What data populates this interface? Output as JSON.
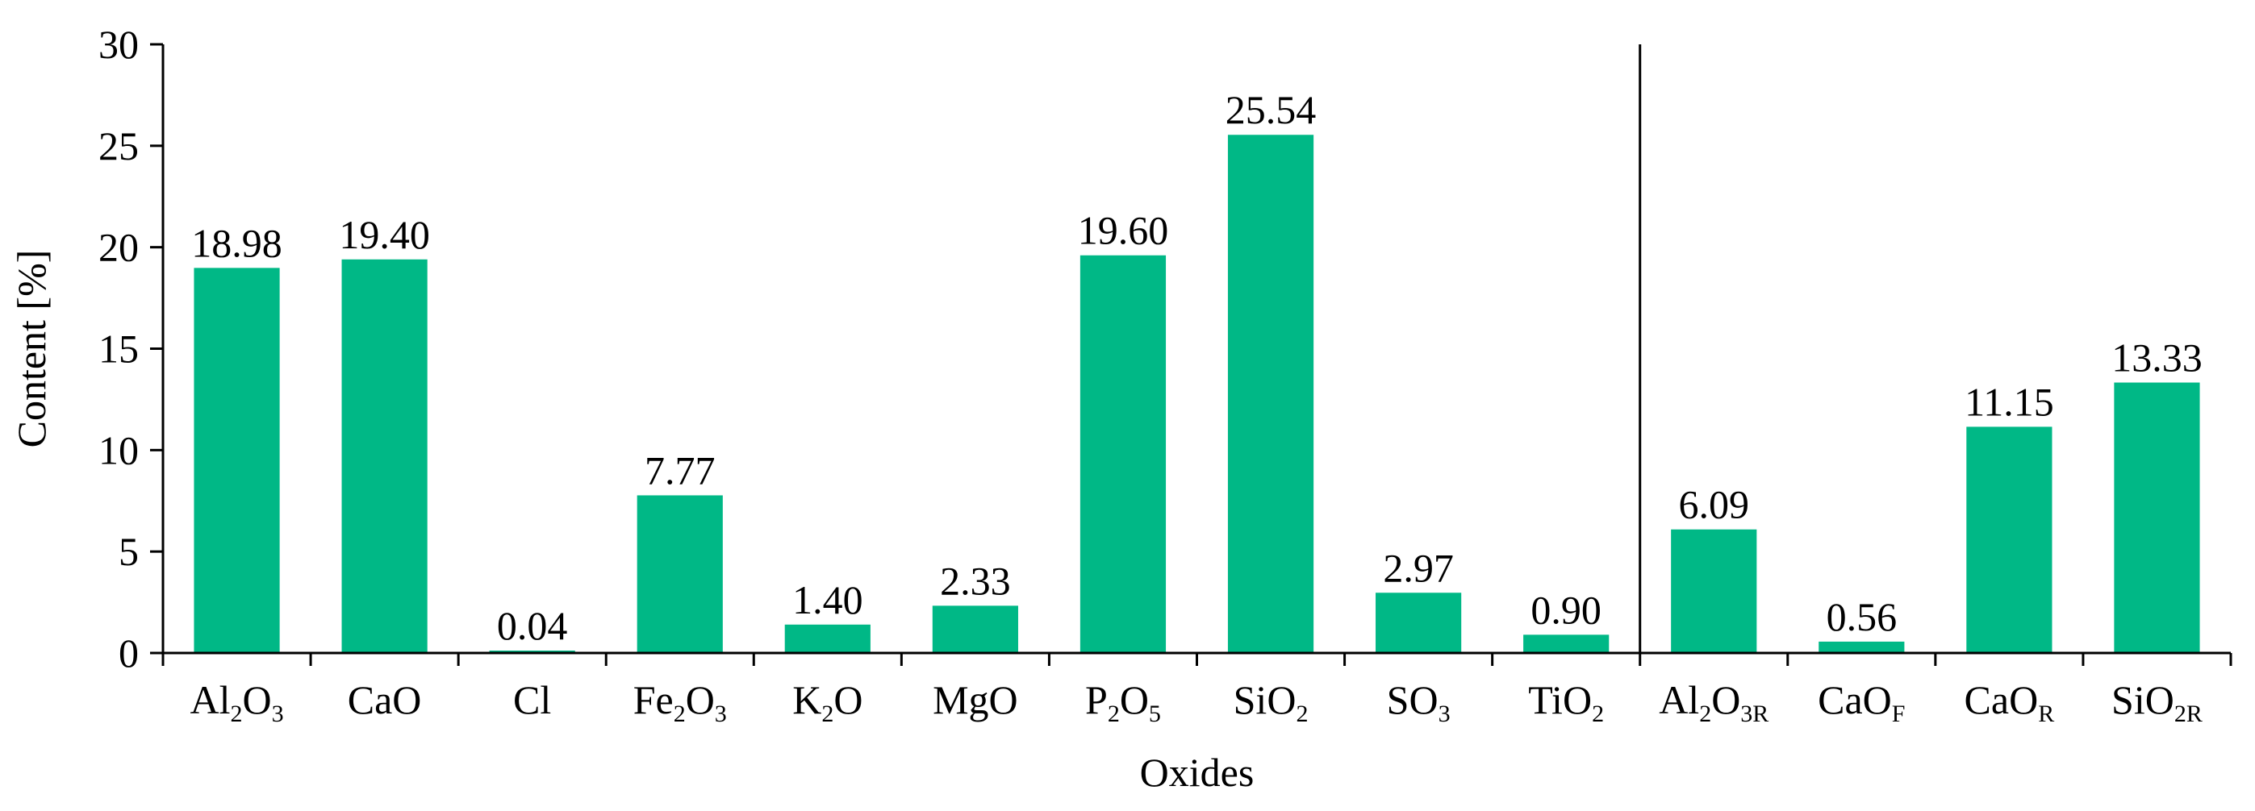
{
  "chart_data": {
    "type": "bar",
    "xlabel": "Oxides",
    "ylabel": "Content [%]",
    "ylim": [
      0,
      30
    ],
    "yticks": [
      0,
      5,
      10,
      15,
      20,
      25,
      30
    ],
    "grid": false,
    "bar_color": "#00b886",
    "categories": [
      {
        "base": "Al",
        "sub1": "2",
        "mid": "O",
        "sub2": "3"
      },
      {
        "base": "CaO"
      },
      {
        "base": "Cl"
      },
      {
        "base": "Fe",
        "sub1": "2",
        "mid": "O",
        "sub2": "3"
      },
      {
        "base": "K",
        "sub1": "2",
        "mid": "O"
      },
      {
        "base": "MgO"
      },
      {
        "base": "P",
        "sub1": "2",
        "mid": "O",
        "sub2": "5"
      },
      {
        "base": "SiO",
        "sub1": "2"
      },
      {
        "base": "SO",
        "sub1": "3"
      },
      {
        "base": "TiO",
        "sub1": "2"
      },
      {
        "base": "Al",
        "sub1": "2",
        "mid": "O",
        "sub2": "3R"
      },
      {
        "base": "CaO",
        "sub1": "F"
      },
      {
        "base": "CaO",
        "sub1": "R"
      },
      {
        "base": "SiO",
        "sub1": "2R"
      }
    ],
    "values": [
      18.98,
      19.4,
      0.04,
      7.77,
      1.4,
      2.33,
      19.6,
      25.54,
      2.97,
      0.9,
      6.09,
      0.56,
      11.15,
      13.33
    ],
    "value_labels": [
      "18.98",
      "19.40",
      "0.04",
      "7.77",
      "1.40",
      "2.33",
      "19.60",
      "25.54",
      "2.97",
      "0.90",
      "6.09",
      "0.56",
      "11.15",
      "13.33"
    ],
    "separator_after_index": 9
  }
}
